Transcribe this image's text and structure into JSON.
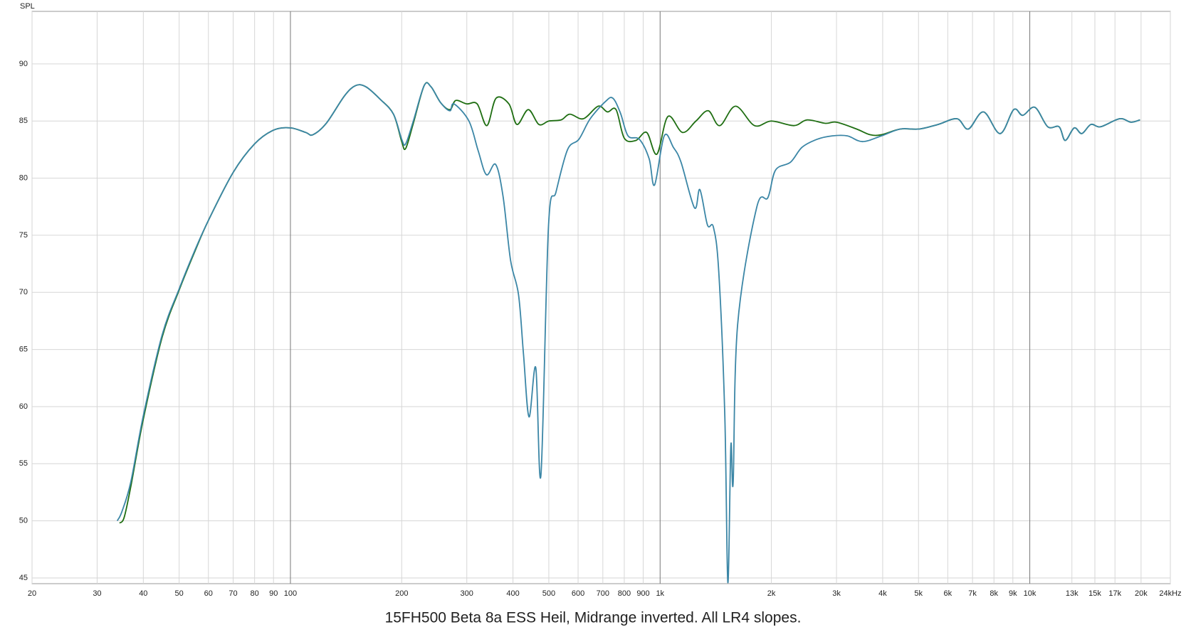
{
  "chart_data": {
    "type": "line",
    "title": "15FH500 Beta 8a ESS Heil, Midrange inverted. All LR4 slopes.",
    "y_label": "SPL",
    "x_scale": "log",
    "xlim": [
      20,
      24000
    ],
    "ylim": [
      44.5,
      94.6
    ],
    "grid": true,
    "xticks": [
      20,
      30,
      40,
      50,
      60,
      70,
      80,
      90,
      100,
      200,
      300,
      400,
      500,
      600,
      700,
      800,
      900,
      {
        "value": 1000,
        "label": "1k"
      },
      {
        "value": 2000,
        "label": "2k"
      },
      {
        "value": 3000,
        "label": "3k"
      },
      {
        "value": 4000,
        "label": "4k"
      },
      {
        "value": 5000,
        "label": "5k"
      },
      {
        "value": 6000,
        "label": "6k"
      },
      {
        "value": 7000,
        "label": "7k"
      },
      {
        "value": 8000,
        "label": "8k"
      },
      {
        "value": 9000,
        "label": "9k"
      },
      {
        "value": 10000,
        "label": "10k"
      },
      {
        "value": 13000,
        "label": "13k"
      },
      {
        "value": 15000,
        "label": "15k"
      },
      {
        "value": 17000,
        "label": "17k"
      },
      {
        "value": 20000,
        "label": "20k"
      },
      {
        "value": 24000,
        "label": "24kHz"
      }
    ],
    "yticks": [
      45,
      50,
      55,
      60,
      65,
      70,
      75,
      80,
      85,
      90
    ],
    "series": [
      {
        "color": "#1f6e12",
        "x": [
          34.5,
          35.5,
          37,
          40,
          45,
          50,
          55,
          60,
          70,
          80,
          90,
          100,
          110,
          115,
          125,
          140,
          150,
          160,
          175,
          190,
          200,
          205,
          215,
          230,
          240,
          255,
          270,
          280,
          300,
          320,
          340,
          360,
          390,
          410,
          440,
          470,
          500,
          540,
          570,
          620,
          680,
          720,
          760,
          800,
          860,
          920,
          980,
          1050,
          1150,
          1250,
          1350,
          1450,
          1600,
          1800,
          2000,
          2300,
          2500,
          2800,
          3000,
          3400,
          3700,
          3968,
          4464,
          5022,
          5648,
          6354,
          6820,
          7494,
          8312,
          9046,
          9572,
          10322,
          11184,
          12004,
          12466,
          13190,
          13826,
          14632,
          15550,
          17498,
          18778,
          19868
        ],
        "values": [
          49.8,
          50.3,
          53.0,
          58.9,
          66.1,
          70.2,
          73.5,
          76.3,
          80.5,
          83.0,
          84.2,
          84.4,
          84.0,
          83.8,
          84.8,
          87.2,
          88.1,
          88.0,
          86.9,
          85.6,
          83.2,
          82.6,
          84.8,
          88.1,
          88.0,
          86.6,
          86.0,
          86.8,
          86.5,
          86.5,
          84.6,
          87.0,
          86.5,
          84.7,
          86.0,
          84.7,
          85.0,
          85.1,
          85.6,
          85.2,
          86.3,
          85.8,
          86.0,
          83.5,
          83.3,
          84.0,
          82.1,
          85.4,
          84.0,
          85.0,
          85.9,
          84.6,
          86.3,
          84.6,
          85.0,
          84.6,
          85.1,
          84.8,
          84.9,
          84.3,
          83.8,
          83.8,
          84.3,
          84.3,
          84.7,
          85.2,
          84.3,
          85.8,
          83.9,
          86.0,
          85.5,
          86.2,
          84.5,
          84.5,
          83.3,
          84.4,
          83.9,
          84.7,
          84.5,
          85.2,
          84.9,
          85.1
        ]
      },
      {
        "color": "#3b86a6",
        "x": [
          34,
          35,
          37,
          40,
          45,
          50,
          55,
          60,
          70,
          80,
          90,
          100,
          110,
          115,
          125,
          140,
          150,
          160,
          175,
          190,
          200,
          205,
          215,
          230,
          240,
          255,
          270,
          277,
          304,
          322,
          339,
          359,
          376,
          394,
          414,
          427,
          442,
          461,
          476,
          499,
          523,
          562,
          603,
          647,
          711,
          745,
          781,
          819,
          879,
          934,
          966,
          1026,
          1086,
          1139,
          1239,
          1281,
          1343,
          1394,
          1441,
          1496,
          1525,
          1554,
          1576,
          1621,
          1824,
          1957,
          2052,
          2254,
          2420,
          2658,
          2922,
          3210,
          3528,
          3968,
          4464,
          5022,
          5648,
          6354,
          6820,
          7494,
          8312,
          9046,
          9572,
          10322,
          11184,
          12004,
          12466,
          13190,
          13826,
          14632,
          15550,
          17498,
          18778,
          19868
        ],
        "values": [
          50.0,
          50.8,
          53.4,
          59.2,
          66.3,
          70.3,
          73.6,
          76.3,
          80.5,
          83.0,
          84.2,
          84.4,
          84.0,
          83.8,
          84.8,
          87.2,
          88.1,
          88.0,
          86.9,
          85.6,
          83.4,
          83.0,
          85.0,
          88.1,
          88.0,
          86.6,
          85.9,
          86.5,
          85.0,
          82.4,
          80.3,
          81.2,
          78.4,
          72.8,
          69.8,
          64.6,
          59.1,
          63.4,
          54.0,
          75.8,
          78.8,
          82.5,
          83.4,
          85.2,
          86.7,
          87.0,
          85.7,
          83.7,
          83.4,
          81.7,
          79.4,
          83.7,
          82.7,
          81.4,
          77.4,
          79.0,
          75.9,
          75.7,
          71.8,
          59.3,
          44.6,
          56.6,
          53.3,
          67.2,
          77.4,
          78.3,
          80.7,
          81.4,
          82.7,
          83.4,
          83.7,
          83.7,
          83.2,
          83.7,
          84.3,
          84.3,
          84.7,
          85.2,
          84.3,
          85.8,
          83.9,
          86.0,
          85.5,
          86.2,
          84.5,
          84.5,
          83.3,
          84.4,
          83.9,
          84.7,
          84.5,
          85.2,
          84.9,
          85.1
        ]
      }
    ]
  }
}
